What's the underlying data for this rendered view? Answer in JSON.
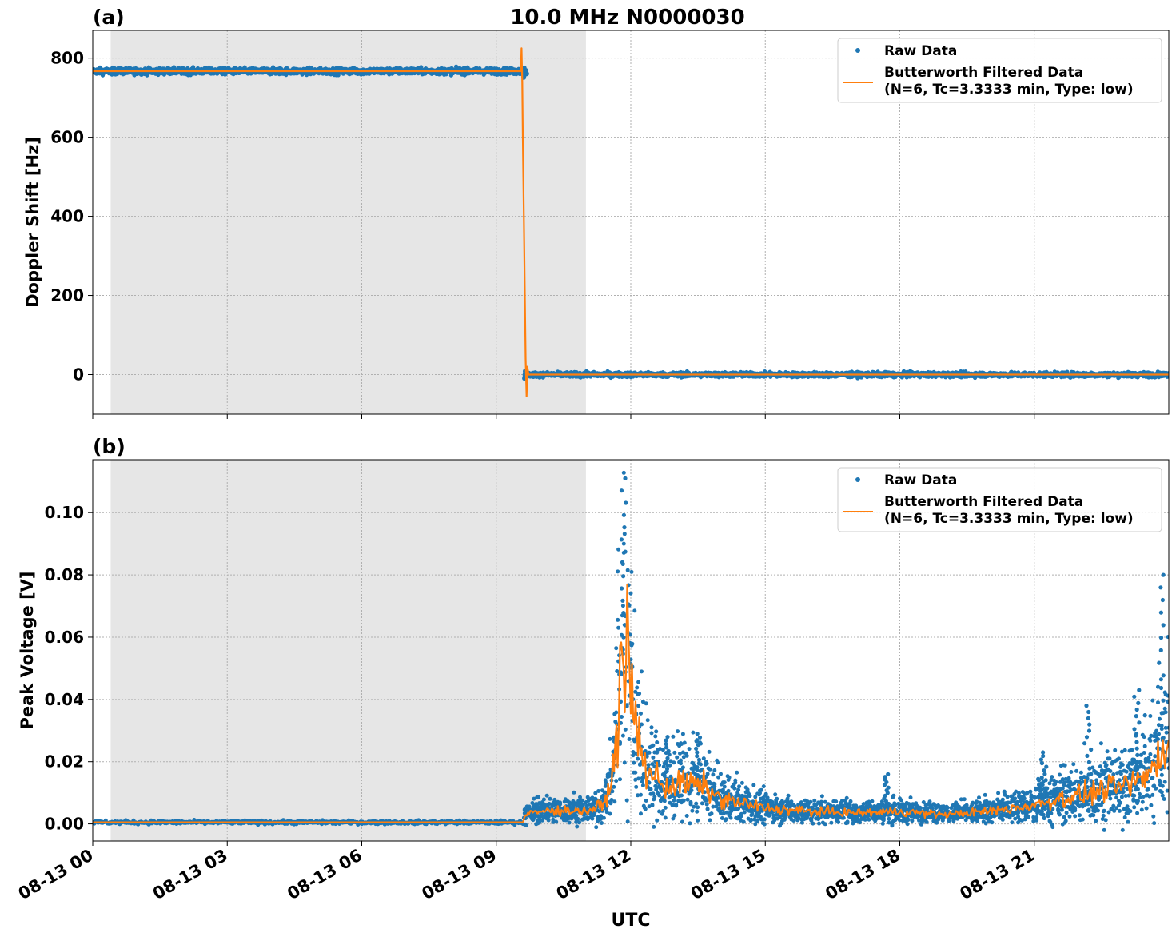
{
  "title": "10.0 MHz N0000030",
  "colors": {
    "raw": "#1f77b4",
    "filtered": "#ff7f0e",
    "night_shade": "#e6e6e6",
    "grid": "#b0b0b0"
  },
  "x_axis": {
    "label": "UTC",
    "ticks": [
      "08-13 00",
      "08-13 03",
      "08-13 06",
      "08-13 09",
      "08-13 12",
      "08-13 15",
      "08-13 18",
      "08-13 21"
    ]
  },
  "legend": {
    "raw": "Raw Data",
    "filtered_line1": "Butterworth Filtered Data",
    "filtered_line2": "(N=6, Tc=3.3333 min, Type: low)"
  },
  "chart_data": [
    {
      "panel": "(a)",
      "type": "scatter",
      "ylabel": "Doppler Shift [Hz]",
      "xlim_hours": [
        0,
        24
      ],
      "ylim": [
        -100,
        870
      ],
      "yticks": [
        "800",
        "600",
        "400",
        "200",
        "0"
      ],
      "yticks_values": [
        800,
        600,
        400,
        200,
        0
      ],
      "shaded_interval_hours": [
        0.4,
        11.0
      ],
      "grid": true,
      "legend_placement": "top-right",
      "series": [
        {
          "name": "Raw Data",
          "style": "points",
          "segments": [
            {
              "x_hours": [
                0,
                9.6
              ],
              "y": 767,
              "noise": 4
            },
            {
              "x_hours": [
                9.65,
                24
              ],
              "y": 0,
              "noise": 3
            }
          ]
        },
        {
          "name": "Butterworth Filtered Data",
          "style": "line",
          "segments": [
            {
              "x_hours": [
                0,
                9.55
              ],
              "y": 767
            },
            {
              "x_hours": [
                9.72,
                24
              ],
              "y": 0
            }
          ],
          "transient": {
            "x_hours": [
              9.55,
              9.72
            ],
            "max": 825,
            "min": -55
          }
        }
      ]
    },
    {
      "panel": "(b)",
      "type": "scatter",
      "ylabel": "Peak Voltage [V]",
      "xlim_hours": [
        0,
        24
      ],
      "ylim": [
        -0.0055,
        0.117
      ],
      "yticks": [
        "0.10",
        "0.08",
        "0.06",
        "0.04",
        "0.02",
        "0.00"
      ],
      "yticks_values": [
        0.1,
        0.08,
        0.06,
        0.04,
        0.02,
        0.0
      ],
      "shaded_interval_hours": [
        0.4,
        11.0
      ],
      "grid": true,
      "legend_placement": "top-right",
      "filtered_profile": {
        "x_hours": [
          0,
          9.6,
          9.65,
          10.0,
          10.5,
          11.0,
          11.4,
          11.6,
          11.8,
          11.9,
          12.0,
          12.3,
          12.8,
          13.2,
          13.6,
          14.0,
          14.5,
          15.0,
          16.0,
          17.0,
          18.0,
          19.0,
          20.0,
          21.0,
          21.5,
          22.0,
          22.5,
          23.0,
          23.5,
          23.8,
          24.0
        ],
        "y": [
          0.0005,
          0.0005,
          0.003,
          0.004,
          0.0045,
          0.004,
          0.006,
          0.016,
          0.05,
          0.062,
          0.04,
          0.018,
          0.012,
          0.013,
          0.012,
          0.008,
          0.0065,
          0.005,
          0.004,
          0.0035,
          0.004,
          0.003,
          0.004,
          0.006,
          0.008,
          0.009,
          0.011,
          0.012,
          0.015,
          0.022,
          0.028
        ]
      },
      "raw_peaks": [
        {
          "x_hour": 11.85,
          "y": 0.111
        },
        {
          "x_hour": 12.8,
          "y": 0.028
        },
        {
          "x_hour": 13.5,
          "y": 0.029
        },
        {
          "x_hour": 17.7,
          "y": 0.016
        },
        {
          "x_hour": 21.2,
          "y": 0.023
        },
        {
          "x_hour": 22.2,
          "y": 0.038
        },
        {
          "x_hour": 23.3,
          "y": 0.043
        },
        {
          "x_hour": 23.85,
          "y": 0.08
        }
      ]
    }
  ]
}
